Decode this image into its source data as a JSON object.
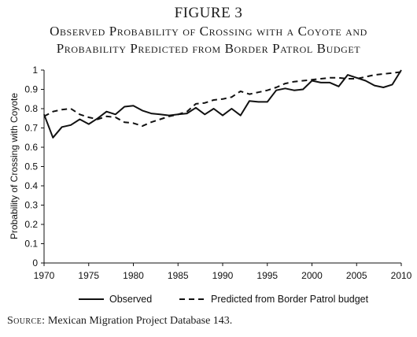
{
  "figure": {
    "label": "FIGURE 3",
    "title_line1": "Observed Probability of Crossing with a Coyote and",
    "title_line2": "Probability Predicted from Border Patrol Budget"
  },
  "source": {
    "label": "Source:",
    "text": "Mexican Migration Project Database 143."
  },
  "chart_data": {
    "type": "line",
    "title": "",
    "xlabel": "",
    "ylabel": "Probability of Crossing with Coyote",
    "xlim": [
      1970,
      2010
    ],
    "ylim": [
      0,
      1
    ],
    "xticks": [
      1970,
      1975,
      1980,
      1985,
      1990,
      1995,
      2000,
      2005,
      2010
    ],
    "xtick_labels": [
      "1970",
      "1975",
      "1980",
      "1985",
      "1990",
      "1995",
      "2000",
      "2005",
      "2010"
    ],
    "yticks": [
      0,
      0.1,
      0.2,
      0.3,
      0.4,
      0.5,
      0.6,
      0.7,
      0.8,
      0.9,
      1
    ],
    "ytick_labels": [
      "0",
      "0.1",
      "0.2",
      "0.3",
      "0.4",
      "0.5",
      "0.6",
      "0.7",
      "0.8",
      "0.9",
      "1"
    ],
    "grid": false,
    "legend": "bottom",
    "series": [
      {
        "name": "Observed",
        "style": "solid",
        "x": [
          1970,
          1971,
          1972,
          1973,
          1974,
          1975,
          1976,
          1977,
          1978,
          1979,
          1980,
          1981,
          1982,
          1983,
          1984,
          1985,
          1986,
          1987,
          1988,
          1989,
          1990,
          1991,
          1992,
          1993,
          1994,
          1995,
          1996,
          1997,
          1998,
          1999,
          2000,
          2001,
          2002,
          2003,
          2004,
          2005,
          2006,
          2007,
          2008,
          2009,
          2010
        ],
        "y": [
          0.77,
          0.65,
          0.705,
          0.715,
          0.745,
          0.72,
          0.75,
          0.785,
          0.77,
          0.81,
          0.815,
          0.79,
          0.775,
          0.77,
          0.765,
          0.77,
          0.775,
          0.805,
          0.77,
          0.8,
          0.765,
          0.8,
          0.765,
          0.84,
          0.835,
          0.835,
          0.895,
          0.905,
          0.895,
          0.9,
          0.945,
          0.935,
          0.935,
          0.915,
          0.975,
          0.96,
          0.945,
          0.92,
          0.91,
          0.925,
          1.0
        ]
      },
      {
        "name": "Predicted from Border Patrol budget",
        "style": "dashed",
        "x": [
          1970,
          1971,
          1972,
          1973,
          1974,
          1975,
          1976,
          1977,
          1978,
          1979,
          1980,
          1981,
          1982,
          1983,
          1984,
          1985,
          1986,
          1987,
          1988,
          1989,
          1990,
          1991,
          1992,
          1993,
          1994,
          1995,
          1996,
          1997,
          1998,
          1999,
          2000,
          2001,
          2002,
          2003,
          2004,
          2005,
          2006,
          2007,
          2008,
          2009,
          2010
        ],
        "y": [
          0.76,
          0.785,
          0.795,
          0.8,
          0.77,
          0.755,
          0.745,
          0.76,
          0.755,
          0.73,
          0.725,
          0.71,
          0.73,
          0.745,
          0.76,
          0.77,
          0.785,
          0.825,
          0.83,
          0.845,
          0.85,
          0.86,
          0.89,
          0.875,
          0.885,
          0.895,
          0.91,
          0.93,
          0.94,
          0.945,
          0.95,
          0.955,
          0.96,
          0.96,
          0.955,
          0.955,
          0.965,
          0.975,
          0.98,
          0.985,
          0.99
        ]
      }
    ]
  }
}
